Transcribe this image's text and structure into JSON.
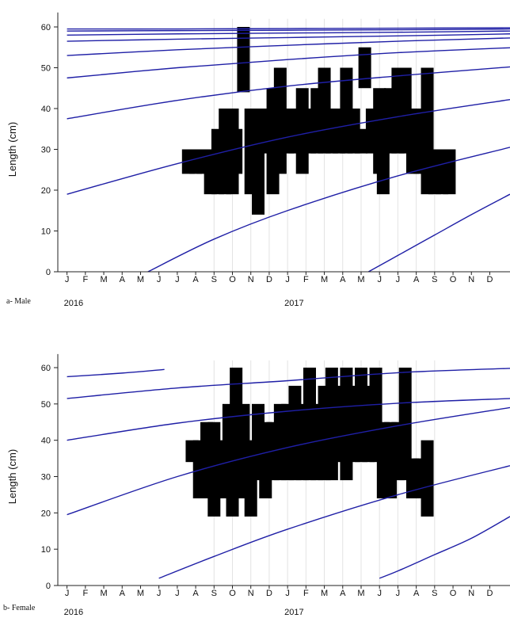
{
  "chart_data": [
    {
      "type": "area",
      "panel_label": "a- Male",
      "ylabel": "Length (cm)",
      "ylim": [
        0,
        62
      ],
      "yticks": [
        0,
        10,
        20,
        30,
        40,
        50,
        60
      ],
      "months": [
        "J",
        "F",
        "M",
        "A",
        "M",
        "J",
        "J",
        "A",
        "S",
        "O",
        "N",
        "D",
        "J",
        "F",
        "M",
        "A",
        "M",
        "J",
        "J",
        "A",
        "S",
        "O",
        "N",
        "D"
      ],
      "years": [
        {
          "label": "2016",
          "month_index": 0
        },
        {
          "label": "2017",
          "month_index": 12
        }
      ],
      "xlim": [
        -0.5,
        24.1
      ],
      "vertical_gridlines_at_months": [
        8,
        9,
        10,
        11,
        12,
        13,
        14,
        15,
        16,
        17,
        18,
        19,
        20
      ],
      "bar_color": "#000000",
      "curve_color": "#1f1fa6",
      "growth_curves": [
        {
          "x": [
            0,
            6,
            12,
            18,
            24.1
          ],
          "y": [
            59.5,
            59.5,
            59.6,
            59.7,
            59.8
          ]
        },
        {
          "x": [
            0,
            6,
            12,
            18,
            24.1
          ],
          "y": [
            59,
            59.1,
            59.2,
            59.3,
            59.5
          ]
        },
        {
          "x": [
            0,
            6,
            12,
            18,
            24.1
          ],
          "y": [
            58,
            58.3,
            58.5,
            58.7,
            59
          ]
        },
        {
          "x": [
            0,
            6,
            12,
            18,
            24.1
          ],
          "y": [
            56.5,
            57,
            57.4,
            57.8,
            58.3
          ]
        },
        {
          "x": [
            0,
            6,
            12,
            18,
            24.1
          ],
          "y": [
            53,
            54.4,
            55.5,
            56.5,
            57.3
          ]
        },
        {
          "x": [
            0,
            6,
            12,
            18,
            24.1
          ],
          "y": [
            47.5,
            50,
            52,
            53.7,
            54.9
          ]
        },
        {
          "x": [
            0,
            6,
            12,
            18,
            24.1
          ],
          "y": [
            37.5,
            42,
            45.5,
            48,
            50.2
          ]
        },
        {
          "x": [
            0,
            6,
            12,
            18,
            24.1
          ],
          "y": [
            19,
            26.5,
            33,
            38,
            42.2
          ]
        },
        {
          "x": [
            4.4,
            8,
            12,
            18,
            24.1
          ],
          "y": [
            0,
            8,
            15,
            23.5,
            30.5
          ]
        },
        {
          "x": [
            16.4,
            18,
            20,
            22,
            24.1
          ],
          "y": [
            0,
            4,
            9,
            14,
            19
          ]
        }
      ],
      "samples": [
        {
          "x": 6.6,
          "low": 24,
          "high": 30
        },
        {
          "x": 7.0,
          "low": 24,
          "high": 30
        },
        {
          "x": 7.4,
          "low": 24,
          "high": 30
        },
        {
          "x": 7.8,
          "low": 19,
          "high": 30
        },
        {
          "x": 8.2,
          "low": 19,
          "high": 35
        },
        {
          "x": 8.6,
          "low": 19,
          "high": 40
        },
        {
          "x": 9.0,
          "low": 19,
          "high": 40
        },
        {
          "x": 9.2,
          "low": 24,
          "high": 35
        },
        {
          "x": 9.6,
          "low": 44,
          "high": 60
        },
        {
          "x": 10.0,
          "low": 19,
          "high": 40
        },
        {
          "x": 10.4,
          "low": 14,
          "high": 40
        },
        {
          "x": 10.8,
          "low": 29,
          "high": 40
        },
        {
          "x": 11.2,
          "low": 19,
          "high": 45
        },
        {
          "x": 11.6,
          "low": 24,
          "high": 50
        },
        {
          "x": 12.0,
          "low": 29,
          "high": 40
        },
        {
          "x": 12.4,
          "low": 29,
          "high": 40
        },
        {
          "x": 12.8,
          "low": 24,
          "high": 45
        },
        {
          "x": 13.2,
          "low": 29,
          "high": 40
        },
        {
          "x": 13.6,
          "low": 29,
          "high": 45
        },
        {
          "x": 14.0,
          "low": 29,
          "high": 50
        },
        {
          "x": 14.4,
          "low": 29,
          "high": 40
        },
        {
          "x": 14.8,
          "low": 29,
          "high": 40
        },
        {
          "x": 15.2,
          "low": 29,
          "high": 50
        },
        {
          "x": 15.6,
          "low": 29,
          "high": 40
        },
        {
          "x": 16.0,
          "low": 29,
          "high": 35
        },
        {
          "x": 16.2,
          "low": 45,
          "high": 55
        },
        {
          "x": 16.6,
          "low": 29,
          "high": 40
        },
        {
          "x": 17.0,
          "low": 24,
          "high": 45
        },
        {
          "x": 17.2,
          "low": 19,
          "high": 30
        },
        {
          "x": 17.6,
          "low": 29,
          "high": 45
        },
        {
          "x": 18.0,
          "low": 29,
          "high": 50
        },
        {
          "x": 18.4,
          "low": 29,
          "high": 50
        },
        {
          "x": 18.8,
          "low": 24,
          "high": 40
        },
        {
          "x": 19.2,
          "low": 24,
          "high": 40
        },
        {
          "x": 19.6,
          "low": 19,
          "high": 50
        },
        {
          "x": 20.0,
          "low": 19,
          "high": 30
        },
        {
          "x": 20.4,
          "low": 19,
          "high": 30
        },
        {
          "x": 20.8,
          "low": 19,
          "high": 30
        }
      ]
    },
    {
      "type": "area",
      "panel_label": "b- Female",
      "ylabel": "Length (cm)",
      "ylim": [
        0,
        62
      ],
      "yticks": [
        0,
        10,
        20,
        30,
        40,
        50,
        60
      ],
      "months": [
        "J",
        "F",
        "M",
        "A",
        "M",
        "J",
        "J",
        "A",
        "S",
        "O",
        "N",
        "D",
        "J",
        "F",
        "M",
        "A",
        "M",
        "J",
        "J",
        "A",
        "S",
        "O",
        "N",
        "D"
      ],
      "years": [
        {
          "label": "2016",
          "month_index": 0
        },
        {
          "label": "2017",
          "month_index": 12
        }
      ],
      "xlim": [
        -0.5,
        24.1
      ],
      "vertical_gridlines_at_months": [
        8,
        9,
        10,
        11,
        12,
        13,
        14,
        15,
        16,
        17,
        18,
        19,
        20
      ],
      "bar_color": "#000000",
      "curve_color": "#1f1fa6",
      "growth_curves": [
        {
          "x": [
            0,
            3,
            5.3
          ],
          "y": [
            57.5,
            58.5,
            59.5
          ]
        },
        {
          "x": [
            0,
            6,
            12,
            18,
            24.1
          ],
          "y": [
            51.5,
            54.4,
            56.4,
            58.6,
            59.8
          ]
        },
        {
          "x": [
            0,
            6,
            12,
            18,
            24.1
          ],
          "y": [
            40,
            44.7,
            48,
            50.2,
            51.5
          ]
        },
        {
          "x": [
            0,
            6,
            12,
            18,
            24.1
          ],
          "y": [
            19.5,
            30,
            38,
            44,
            49
          ]
        },
        {
          "x": [
            5.0,
            8,
            12,
            18,
            24.1
          ],
          "y": [
            2,
            8,
            15.5,
            25,
            33
          ]
        },
        {
          "x": [
            17.0,
            18,
            20,
            22,
            24.1
          ],
          "y": [
            2,
            4,
            8.5,
            13,
            19
          ]
        }
      ],
      "samples": [
        {
          "x": 6.8,
          "low": 34,
          "high": 40
        },
        {
          "x": 7.2,
          "low": 24,
          "high": 40
        },
        {
          "x": 7.6,
          "low": 24,
          "high": 45
        },
        {
          "x": 8.0,
          "low": 19,
          "high": 45
        },
        {
          "x": 8.4,
          "low": 24,
          "high": 40
        },
        {
          "x": 8.8,
          "low": 24,
          "high": 50
        },
        {
          "x": 9.0,
          "low": 19,
          "high": 45
        },
        {
          "x": 9.2,
          "low": 29,
          "high": 60
        },
        {
          "x": 9.6,
          "low": 24,
          "high": 50
        },
        {
          "x": 10.0,
          "low": 19,
          "high": 40
        },
        {
          "x": 10.4,
          "low": 29,
          "high": 50
        },
        {
          "x": 10.8,
          "low": 24,
          "high": 45
        },
        {
          "x": 11.2,
          "low": 29,
          "high": 45
        },
        {
          "x": 11.6,
          "low": 29,
          "high": 50
        },
        {
          "x": 12.0,
          "low": 29,
          "high": 50
        },
        {
          "x": 12.4,
          "low": 29,
          "high": 55
        },
        {
          "x": 12.8,
          "low": 29,
          "high": 50
        },
        {
          "x": 13.2,
          "low": 29,
          "high": 60
        },
        {
          "x": 13.6,
          "low": 29,
          "high": 50
        },
        {
          "x": 14.0,
          "low": 29,
          "high": 55
        },
        {
          "x": 14.4,
          "low": 29,
          "high": 60
        },
        {
          "x": 14.8,
          "low": 34,
          "high": 55
        },
        {
          "x": 15.2,
          "low": 29,
          "high": 60
        },
        {
          "x": 15.6,
          "low": 34,
          "high": 55
        },
        {
          "x": 16.0,
          "low": 34,
          "high": 60
        },
        {
          "x": 16.4,
          "low": 34,
          "high": 55
        },
        {
          "x": 16.8,
          "low": 34,
          "high": 60
        },
        {
          "x": 17.2,
          "low": 24,
          "high": 45
        },
        {
          "x": 17.6,
          "low": 24,
          "high": 45
        },
        {
          "x": 18.0,
          "low": 29,
          "high": 45
        },
        {
          "x": 18.4,
          "low": 29,
          "high": 60
        },
        {
          "x": 18.8,
          "low": 24,
          "high": 35
        },
        {
          "x": 19.2,
          "low": 24,
          "high": 35
        },
        {
          "x": 19.6,
          "low": 19,
          "high": 40
        }
      ]
    }
  ]
}
